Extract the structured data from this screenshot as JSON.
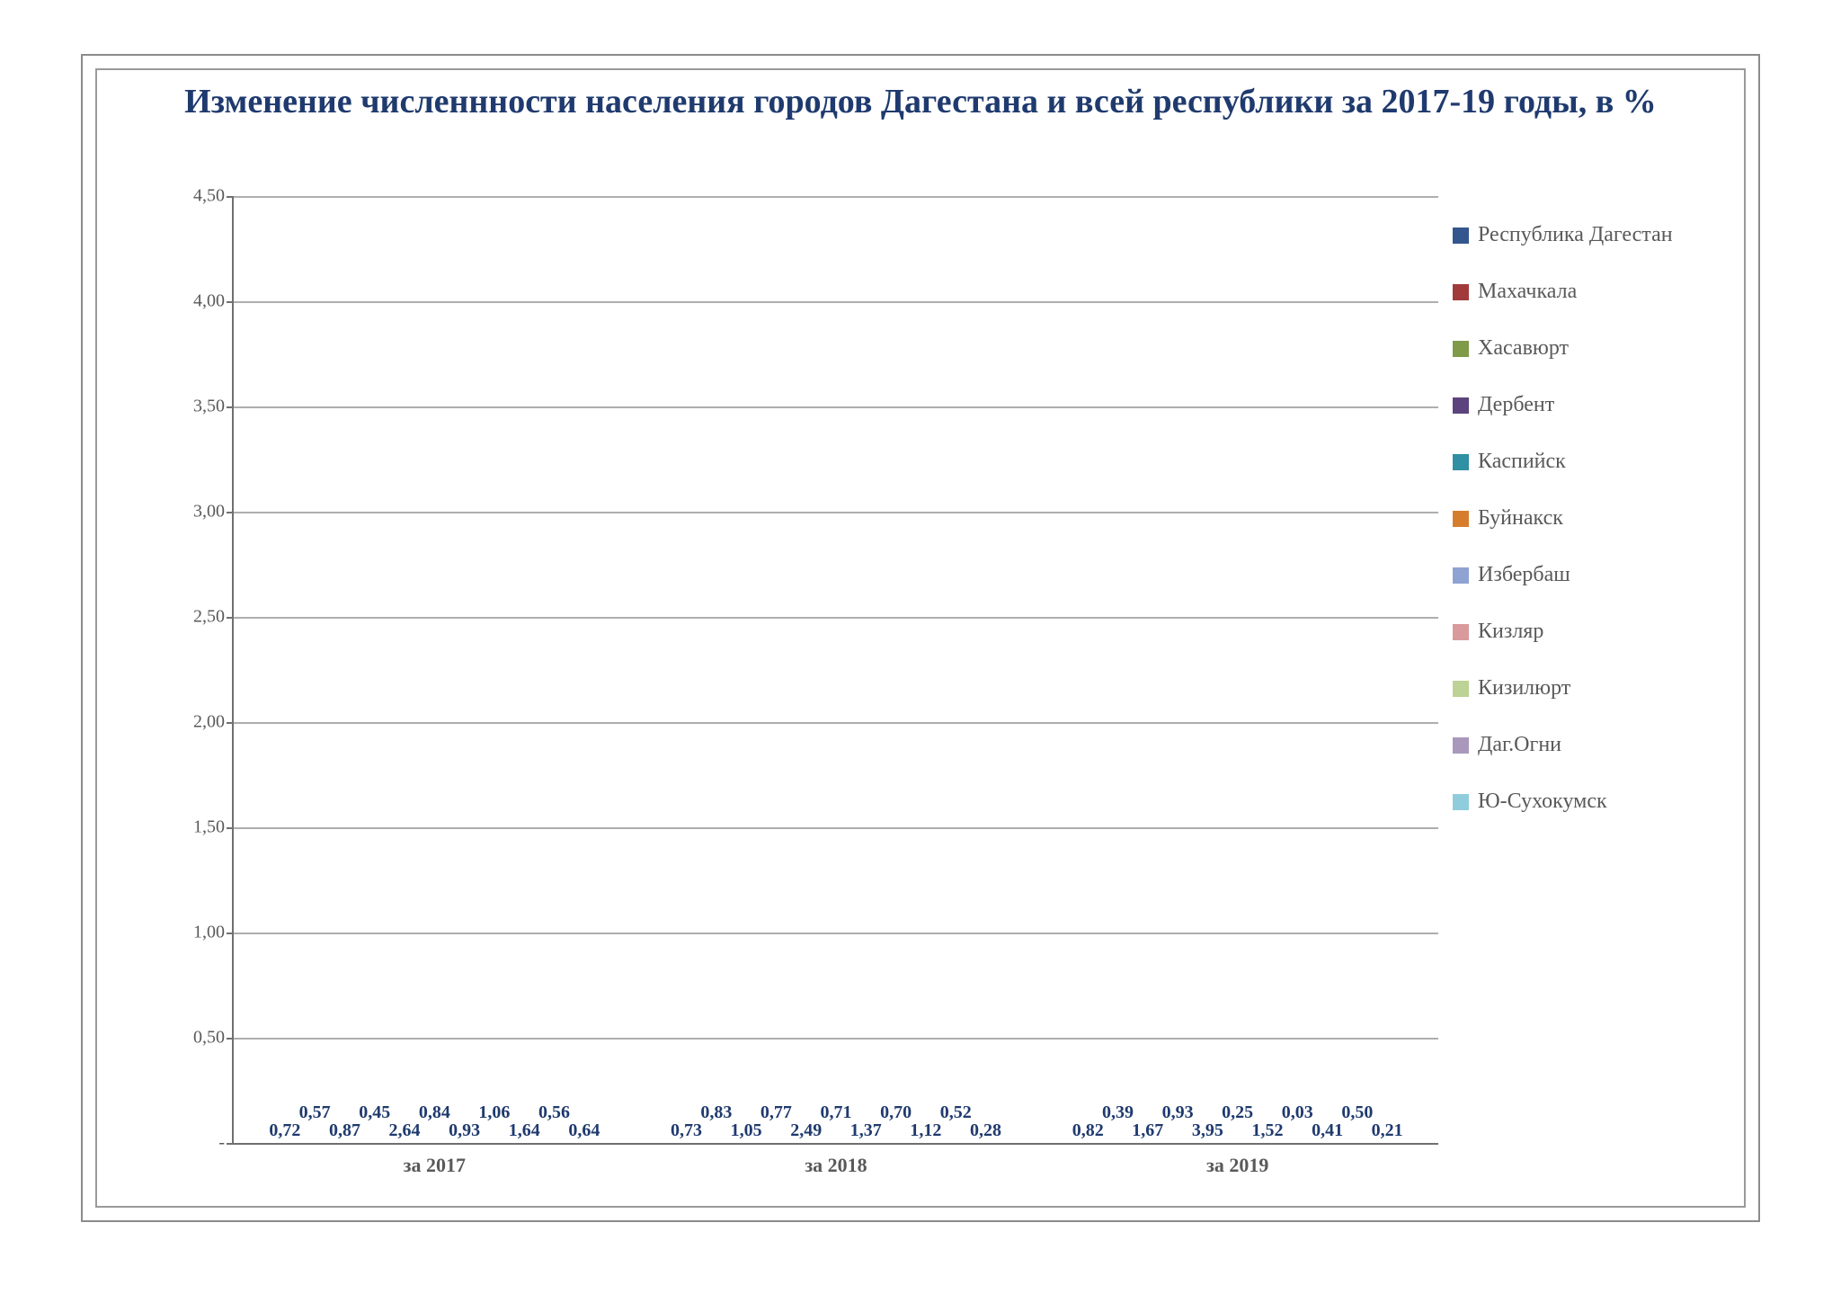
{
  "chart": {
    "type": "bar",
    "title": "Изменение численнности населения городов Дагестана и всей республики за 2017-19 годы, в %",
    "title_color": "#1f3a6e",
    "title_fontsize": 38,
    "background_color": "#ffffff",
    "outer_border_color": "#8b8b8b",
    "inner_border_color": "#9a9a9a",
    "axis_color": "#707070",
    "grid_color": "#aeaeae",
    "label_color": "#1f3a6e",
    "tick_color": "#595959",
    "label_fontsize": 20,
    "ylim": [
      0,
      4.5
    ],
    "ytick_step": 0.5,
    "yticks": [
      "-",
      "0,50",
      "1,00",
      "1,50",
      "2,00",
      "2,50",
      "3,00",
      "3,50",
      "4,00",
      "4,50"
    ],
    "categories": [
      "за 2017",
      "за 2018",
      "за 2019"
    ],
    "series": [
      {
        "name": "Республика Дагестан",
        "color": "#33568f"
      },
      {
        "name": "Махачкала",
        "color": "#a13a3b"
      },
      {
        "name": "Хасавюрт",
        "color": "#7f9b48"
      },
      {
        "name": "Дербент",
        "color": "#5c437d"
      },
      {
        "name": "Каспийск",
        "color": "#2f8fa3"
      },
      {
        "name": "Буйнакск",
        "color": "#d67d2d"
      },
      {
        "name": "Избербаш",
        "color": "#8ea3d1"
      },
      {
        "name": "Кизляр",
        "color": "#d99a9c"
      },
      {
        "name": "Кизилюрт",
        "color": "#bdd295"
      },
      {
        "name": "Даг.Огни",
        "color": "#a998bc"
      },
      {
        "name": "Ю-Сухокумск",
        "color": "#90cddc"
      }
    ],
    "data": [
      {
        "values": [
          0.72,
          0.57,
          0.87,
          0.45,
          2.64,
          0.84,
          0.93,
          1.06,
          1.64,
          0.56,
          0.64
        ],
        "labels": [
          "0,72",
          "0,57",
          "0,87",
          "0,45",
          "2,64",
          "0,84",
          "0,93",
          "1,06",
          "1,64",
          "0,56",
          "0,64"
        ]
      },
      {
        "values": [
          0.73,
          0.83,
          1.05,
          0.77,
          2.49,
          0.71,
          1.37,
          0.7,
          1.12,
          0.52,
          0.28
        ],
        "labels": [
          "0,73",
          "0,83",
          "1,05",
          "0,77",
          "2,49",
          "0,71",
          "1,37",
          "0,70",
          "1,12",
          "0,52",
          "0,28"
        ]
      },
      {
        "values": [
          0.82,
          0.39,
          1.67,
          0.93,
          3.95,
          0.25,
          1.52,
          0.03,
          0.41,
          0.5,
          0.21
        ],
        "labels": [
          "0,82",
          "0,39",
          "1,67",
          "0,93",
          "3,95",
          "0,25",
          "1,52",
          "0,03",
          "0,41",
          "0,50",
          "0,21"
        ]
      }
    ]
  }
}
